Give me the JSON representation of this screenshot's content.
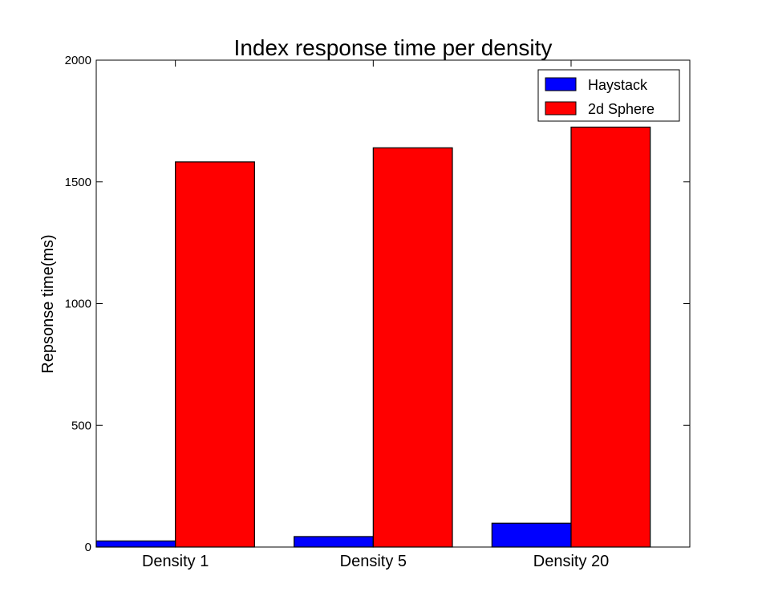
{
  "chart_data": {
    "type": "bar",
    "title": "Index response time per density",
    "xlabel": "",
    "ylabel": "Repsonse time(ms)",
    "categories": [
      "Density 1",
      "Density 5",
      "Density 20"
    ],
    "series": [
      {
        "name": "Haystack",
        "values": [
          25,
          43,
          98
        ],
        "color": "#0000ff"
      },
      {
        "name": "2d Sphere",
        "values": [
          1582,
          1640,
          1725
        ],
        "color": "#ff0000"
      }
    ],
    "ylim": [
      0,
      2000
    ],
    "yticks": [
      0,
      500,
      1000,
      1500,
      2000
    ],
    "grid": false,
    "legend": "top-right"
  }
}
